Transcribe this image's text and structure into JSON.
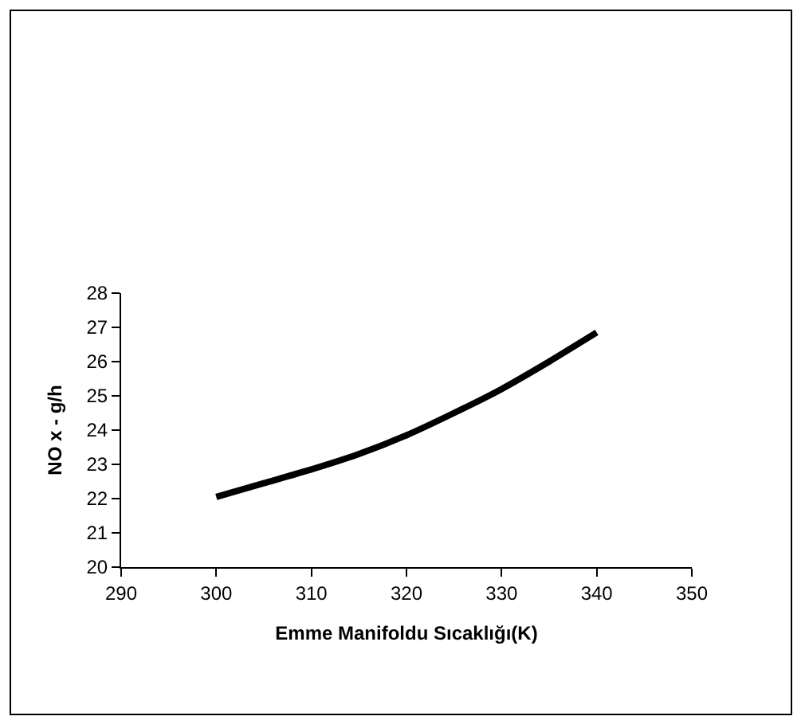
{
  "chart_data": {
    "type": "line",
    "xlabel": "Emme Manifoldu Sıcaklığı(K)",
    "ylabel": "NO x - g/h",
    "x": [
      300,
      305,
      310,
      315,
      320,
      325,
      330,
      335,
      340
    ],
    "series": [
      {
        "color": "#000000",
        "values": [
          22.05,
          22.45,
          22.85,
          23.3,
          23.85,
          24.5,
          25.2,
          26.0,
          26.85
        ]
      }
    ],
    "xlim": [
      290,
      350
    ],
    "xticks": [
      290,
      300,
      310,
      320,
      330,
      340,
      350
    ],
    "ylim": [
      20,
      28
    ],
    "yticks": [
      20,
      21,
      22,
      23,
      24,
      25,
      26,
      27,
      28
    ],
    "grid": false,
    "marker": "none",
    "line_style": "solid"
  }
}
